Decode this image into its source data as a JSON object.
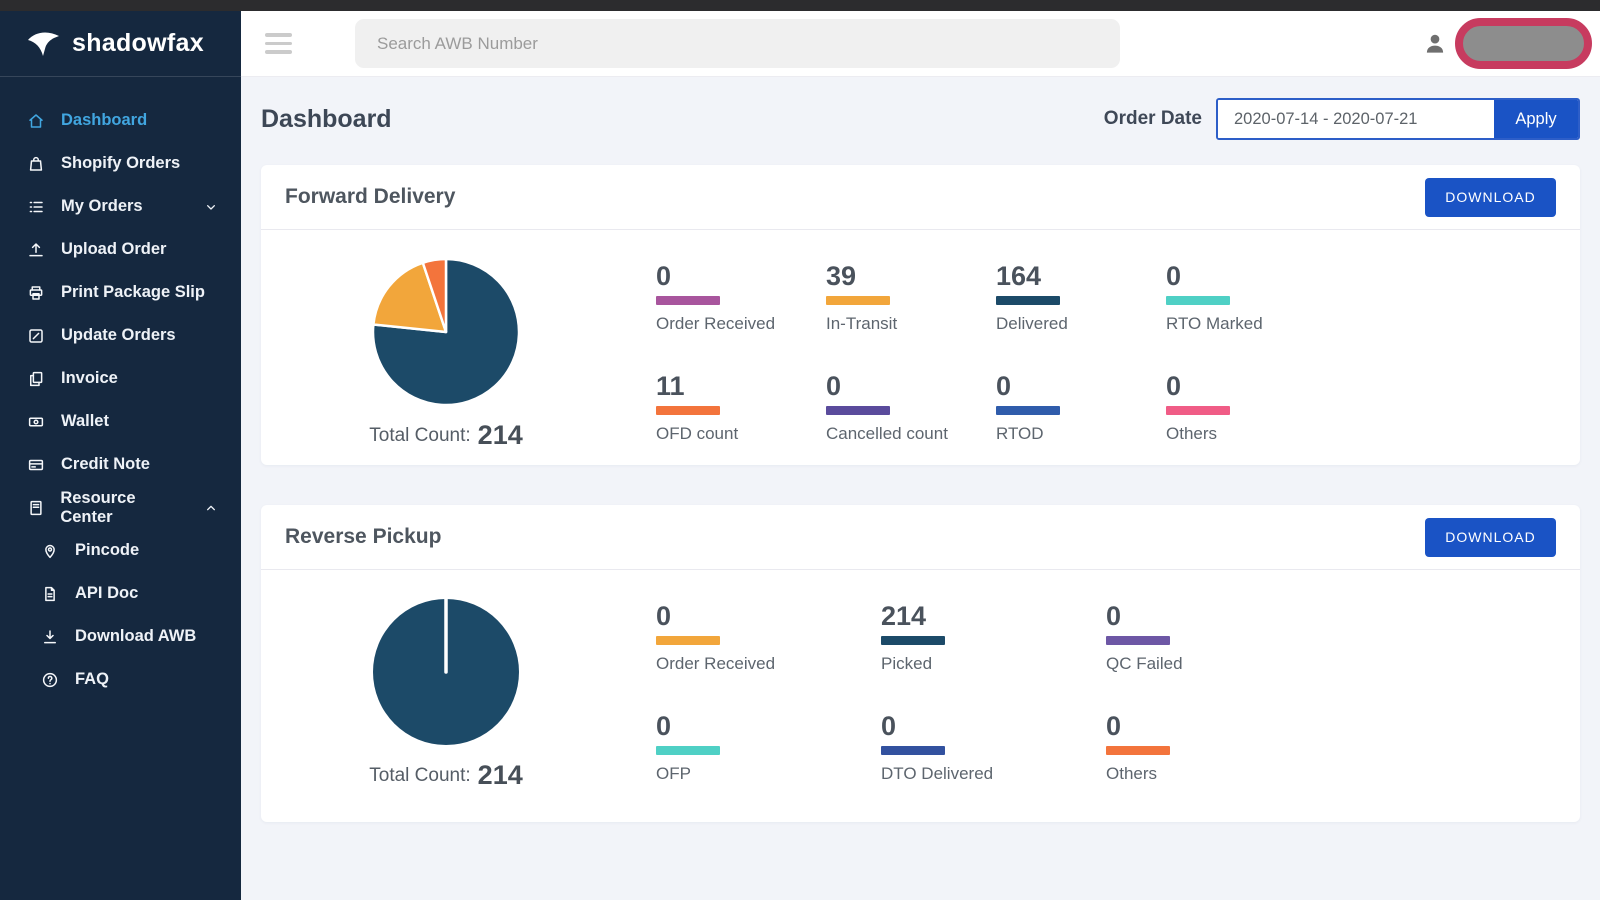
{
  "sidebar": {
    "logo_text": "shadowfax",
    "items": [
      {
        "label": "Dashboard",
        "icon": "home",
        "active": true
      },
      {
        "label": "Shopify Orders",
        "icon": "bag"
      },
      {
        "label": "My Orders",
        "icon": "list",
        "chevron": "down"
      },
      {
        "label": "Upload Order",
        "icon": "upload"
      },
      {
        "label": "Print Package Slip",
        "icon": "printer"
      },
      {
        "label": "Update Orders",
        "icon": "edit"
      },
      {
        "label": "Invoice",
        "icon": "copy"
      },
      {
        "label": "Wallet",
        "icon": "wallet"
      },
      {
        "label": "Credit Note",
        "icon": "card"
      },
      {
        "label": "Resource Center",
        "icon": "book",
        "chevron": "up"
      },
      {
        "label": "Pincode",
        "icon": "pin",
        "sub": true
      },
      {
        "label": "API Doc",
        "icon": "doc",
        "sub": true
      },
      {
        "label": "Download AWB",
        "icon": "download",
        "sub": true
      },
      {
        "label": "FAQ",
        "icon": "question",
        "sub": true
      }
    ]
  },
  "topbar": {
    "search_placeholder": "Search AWB Number"
  },
  "page": {
    "title": "Dashboard",
    "order_date_label": "Order Date",
    "date_range": "2020-07-14 - 2020-07-21",
    "apply_label": "Apply"
  },
  "cards": [
    {
      "title": "Forward Delivery",
      "download_label": "DOWNLOAD",
      "total_label": "Total Count:",
      "total_value": "214",
      "grid_cols": 4,
      "stats_rows": [
        [
          {
            "value": "0",
            "label": "Order Received",
            "color": "#a8559d"
          },
          {
            "value": "39",
            "label": "In-Transit",
            "color": "#f2a63b"
          },
          {
            "value": "164",
            "label": "Delivered",
            "color": "#1c4a68"
          },
          {
            "value": "0",
            "label": "RTO Marked",
            "color": "#4fd0c5"
          }
        ],
        [
          {
            "value": "11",
            "label": "OFD count",
            "color": "#f3743c"
          },
          {
            "value": "0",
            "label": "Cancelled count",
            "color": "#5a4b9c"
          },
          {
            "value": "0",
            "label": "RTOD",
            "color": "#2f5cab"
          },
          {
            "value": "0",
            "label": "Others",
            "color": "#f05c86"
          }
        ]
      ]
    },
    {
      "title": "Reverse Pickup",
      "download_label": "DOWNLOAD",
      "total_label": "Total Count:",
      "total_value": "214",
      "grid_cols": 3,
      "stats_rows": [
        [
          {
            "value": "0",
            "label": "Order Received",
            "color": "#f2a63b"
          },
          {
            "value": "214",
            "label": "Picked",
            "color": "#1c4a68"
          },
          {
            "value": "0",
            "label": "QC Failed",
            "color": "#6d57a5"
          }
        ],
        [
          {
            "value": "0",
            "label": "OFP",
            "color": "#4fd0c5"
          },
          {
            "value": "0",
            "label": "DTO Delivered",
            "color": "#32519f"
          },
          {
            "value": "0",
            "label": "Others",
            "color": "#f3743c"
          }
        ]
      ]
    }
  ],
  "chart_data": [
    {
      "type": "pie",
      "title": "Forward Delivery",
      "labels": [
        "Delivered",
        "In-Transit",
        "OFD count"
      ],
      "values": [
        164,
        39,
        11
      ],
      "colors": [
        "#1c4a68",
        "#f2a63b",
        "#f3743c"
      ],
      "total": 214,
      "annotation": "Total Count: 214",
      "legend_position": "none",
      "start_angle_deg": -90,
      "direction": "clockwise"
    },
    {
      "type": "pie",
      "title": "Reverse Pickup",
      "labels": [
        "Picked"
      ],
      "values": [
        214
      ],
      "colors": [
        "#1c4a68"
      ],
      "total": 214,
      "annotation": "Total Count: 214",
      "legend_position": "none",
      "start_angle_deg": -90,
      "direction": "clockwise"
    }
  ],
  "colors": {
    "sidebar_bg": "#15283f",
    "active_link": "#41a6e0",
    "primary_button": "#1a53c5",
    "page_bg": "#f2f4f9",
    "pill_border": "#c73b5f",
    "pill_fill": "#8d8d8d"
  }
}
